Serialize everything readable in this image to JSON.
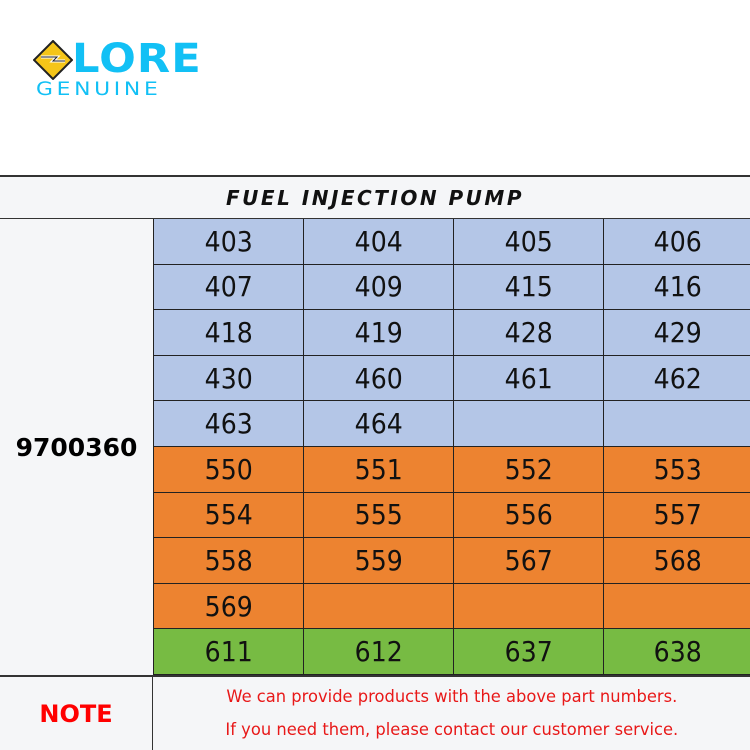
{
  "logo": {
    "brand": "LORE",
    "tagline": "GENUINE",
    "colors": {
      "brand_blue": "#12c0f5",
      "mark_yellow": "#f5c518"
    }
  },
  "table": {
    "title": "FUEL INJECTION PUMP",
    "part_number": "9700360",
    "rows": [
      {
        "color": "blue",
        "cells": [
          "403",
          "404",
          "405",
          "406"
        ]
      },
      {
        "color": "blue",
        "cells": [
          "407",
          "409",
          "415",
          "416"
        ]
      },
      {
        "color": "blue",
        "cells": [
          "418",
          "419",
          "428",
          "429"
        ]
      },
      {
        "color": "blue",
        "cells": [
          "430",
          "460",
          "461",
          "462"
        ]
      },
      {
        "color": "blue",
        "cells": [
          "463",
          "464",
          "",
          ""
        ]
      },
      {
        "color": "orange",
        "cells": [
          "550",
          "551",
          "552",
          "553"
        ]
      },
      {
        "color": "orange",
        "cells": [
          "554",
          "555",
          "556",
          "557"
        ]
      },
      {
        "color": "orange",
        "cells": [
          "558",
          "559",
          "567",
          "568"
        ]
      },
      {
        "color": "orange",
        "cells": [
          "569",
          "",
          "",
          ""
        ]
      },
      {
        "color": "green",
        "cells": [
          "611",
          "612",
          "637",
          "638"
        ]
      }
    ],
    "colors": {
      "blue": "#b4c6e7",
      "orange": "#ed8330",
      "green": "#77bb43"
    }
  },
  "note": {
    "label": "NOTE",
    "lines": [
      "We can provide products with the above part numbers.",
      "If you need them, please contact our customer service."
    ],
    "color": "#e81818"
  }
}
